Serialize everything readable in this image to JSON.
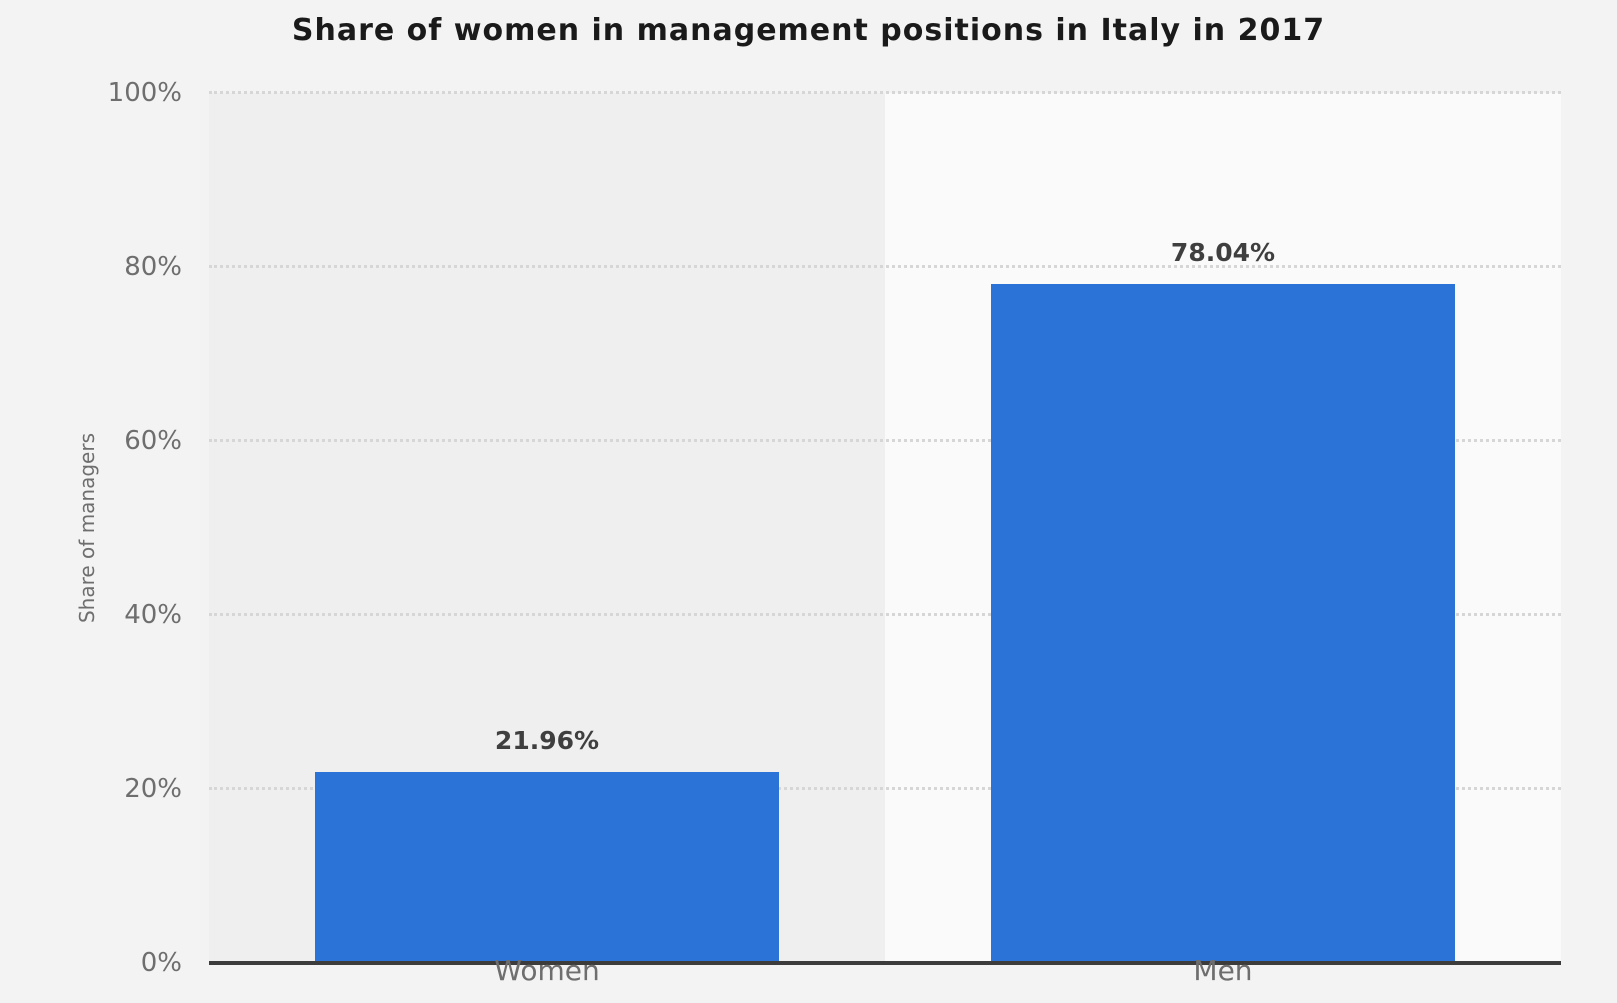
{
  "page": {
    "background_color": "#f3f3f3"
  },
  "chart_data": {
    "type": "bar",
    "title": "Share of women in management positions in Italy in 2017",
    "xlabel": "",
    "ylabel": "Share of managers",
    "categories": [
      "Women",
      "Men"
    ],
    "values": [
      21.96,
      78.04
    ],
    "value_labels": [
      "21.96%",
      "78.04%"
    ],
    "ylim": [
      0,
      100
    ],
    "yticks": [
      0,
      20,
      40,
      60,
      80,
      100
    ],
    "ytick_labels": [
      "0%",
      "20%",
      "40%",
      "60%",
      "80%",
      "100%"
    ],
    "grid": "horizontal-dotted",
    "legend": "none",
    "bar_color": "#2c73d8",
    "plot_band_colors": [
      "#efefef",
      "#fafafa"
    ],
    "axis_line_color": "#3c3c3c"
  }
}
